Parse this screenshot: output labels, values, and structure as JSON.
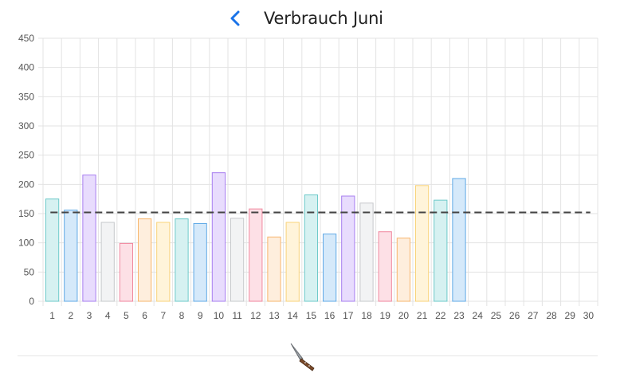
{
  "header": {
    "title": "Verbrauch Juni",
    "back_icon": "chevron-left-icon",
    "accent_color": "#1a73e8"
  },
  "footer": {
    "icon": "knife-icon"
  },
  "chart_data": {
    "type": "bar",
    "title": "Verbrauch Juni",
    "xlabel": "",
    "ylabel": "",
    "ylim": [
      0,
      450
    ],
    "yticks": [
      0,
      50,
      100,
      150,
      200,
      250,
      300,
      350,
      400,
      450
    ],
    "grid": true,
    "categories": [
      "1",
      "2",
      "3",
      "4",
      "5",
      "6",
      "7",
      "8",
      "9",
      "10",
      "11",
      "12",
      "13",
      "14",
      "15",
      "16",
      "17",
      "18",
      "19",
      "20",
      "21",
      "22",
      "23",
      "24",
      "25",
      "26",
      "27",
      "28",
      "29",
      "30"
    ],
    "values": [
      175,
      156,
      216,
      135,
      99,
      141,
      135,
      141,
      133,
      220,
      142,
      158,
      110,
      135,
      182,
      115,
      180,
      168,
      119,
      108,
      198,
      173,
      210,
      null,
      null,
      null,
      null,
      null,
      null,
      null
    ],
    "average_line": 152,
    "colors": [
      {
        "fill": "#d6f1f1",
        "stroke": "#6cc9c9"
      },
      {
        "fill": "#d5e9fa",
        "stroke": "#5fa9e6"
      },
      {
        "fill": "#e8dcfd",
        "stroke": "#a77ef0"
      },
      {
        "fill": "#f2f3f4",
        "stroke": "#c6c8cb"
      },
      {
        "fill": "#fde0e6",
        "stroke": "#f0869e"
      },
      {
        "fill": "#feeedd",
        "stroke": "#f7b56c"
      },
      {
        "fill": "#fff4da",
        "stroke": "#f8d37a"
      }
    ],
    "average_line_color": "#444444"
  }
}
